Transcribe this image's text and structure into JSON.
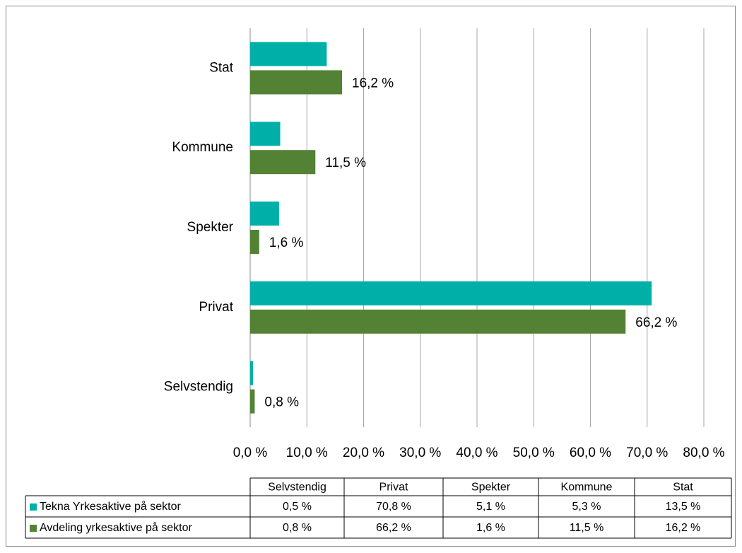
{
  "chart_data": {
    "type": "bar",
    "orientation": "horizontal",
    "categories": [
      "Selvstendig",
      "Privat",
      "Spekter",
      "Kommune",
      "Stat"
    ],
    "series": [
      {
        "name": "Tekna Yrkesaktive på sektor",
        "color": "#00b0a8",
        "values": [
          0.5,
          70.8,
          5.1,
          5.3,
          13.5
        ],
        "value_labels": [
          "0,5 %",
          "70,8 %",
          "5,1 %",
          "5,3 %",
          "13,5 %"
        ],
        "show_labels": false
      },
      {
        "name": "Avdeling yrkesaktive på sektor",
        "color": "#548235",
        "values": [
          0.8,
          66.2,
          1.6,
          11.5,
          16.2
        ],
        "value_labels": [
          "0,8 %",
          "66,2 %",
          "1,6 %",
          "11,5 %",
          "16,2 %"
        ],
        "show_labels": true
      }
    ],
    "xlim": [
      0,
      80
    ],
    "xticks": [
      {
        "value": 0,
        "label": "0,0 %"
      },
      {
        "value": 10,
        "label": "10,0 %"
      },
      {
        "value": 20,
        "label": "20,0 %"
      },
      {
        "value": 30,
        "label": "30,0 %"
      },
      {
        "value": 40,
        "label": "40,0 %"
      },
      {
        "value": 50,
        "label": "50,0 %"
      },
      {
        "value": 60,
        "label": "60,0 %"
      },
      {
        "value": 70,
        "label": "70,0 %"
      },
      {
        "value": 80,
        "label": "80,0 %"
      }
    ],
    "grid": true,
    "data_table": true
  }
}
